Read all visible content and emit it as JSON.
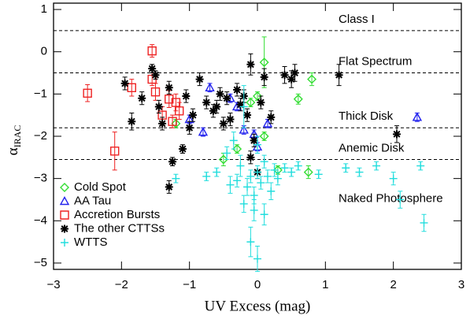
{
  "chart_data": {
    "type": "scatter",
    "x_label": "UV Excess (mag)",
    "y_label": "α",
    "y_label_sub": "IRAC",
    "xlim": [
      -3,
      3
    ],
    "ylim": [
      -5.15,
      1.15
    ],
    "xticks": [
      {
        "value": -3,
        "label": "−3"
      },
      {
        "value": -2,
        "label": "−2"
      },
      {
        "value": -1,
        "label": "−1"
      },
      0,
      1,
      2,
      3
    ],
    "yticks": [
      1,
      0,
      {
        "value": -1,
        "label": "−1"
      },
      {
        "value": -2,
        "label": "−2"
      },
      {
        "value": -3,
        "label": "−3"
      },
      {
        "value": -4,
        "label": "−4"
      },
      {
        "value": -5,
        "label": "−5"
      }
    ],
    "regions": [
      {
        "label": "Class I",
        "boundary": 0.5
      },
      {
        "label": "Flat Spectrum",
        "boundary": -0.5
      },
      {
        "label": "Thick Disk",
        "boundary": -1.8
      },
      {
        "label": "Anemic Disk",
        "boundary": -2.55
      },
      {
        "label": "Naked Photosphere",
        "boundary": null
      }
    ],
    "legend": "bottom-left",
    "series": [
      {
        "name": "Cold Spot",
        "color": "#33dd33",
        "marker": "diamond",
        "x": [
          0.1,
          0.8,
          0.6,
          -1.2,
          0.0,
          -0.1,
          -0.5,
          0.3,
          0.75,
          -0.3,
          0.1
        ],
        "values": [
          -0.25,
          -0.65,
          -1.12,
          -1.7,
          -1.05,
          -1.2,
          -2.55,
          -2.8,
          -2.85,
          -2.3,
          -2.0
        ],
        "errors": [
          0.6,
          0.15,
          0.12,
          0.1,
          0.1,
          0.1,
          0.15,
          0.1,
          0.15,
          0.1,
          0.1
        ]
      },
      {
        "name": "AA Tau",
        "color": "#2222ee",
        "marker": "triangle",
        "x": [
          -0.7,
          -0.8,
          -1.0,
          -0.3,
          -0.2,
          -0.05,
          0.15,
          0.0,
          -0.4,
          2.35
        ],
        "values": [
          -0.85,
          -1.9,
          -1.6,
          -1.3,
          -1.85,
          -1.95,
          -1.7,
          -2.25,
          -1.1,
          -1.55
        ],
        "errors": [
          0.1,
          0.1,
          0.1,
          0.1,
          0.1,
          0.1,
          0.1,
          0.1,
          0.1,
          0.1
        ]
      },
      {
        "name": "Accretion Bursts",
        "color": "#ee2222",
        "marker": "square",
        "x": [
          -2.5,
          -2.1,
          -1.55,
          -1.55,
          -1.85,
          -1.5,
          -1.3,
          -1.2,
          -1.15,
          -1.4,
          -1.25
        ],
        "values": [
          -0.98,
          -2.35,
          0.02,
          -0.65,
          -0.85,
          -0.95,
          -1.12,
          -1.2,
          -1.4,
          -1.5,
          -1.65
        ],
        "errors": [
          0.2,
          0.45,
          0.15,
          0.15,
          0.2,
          0.2,
          0.2,
          0.2,
          0.2,
          0.2,
          0.15
        ]
      },
      {
        "name": "The other CTTSs",
        "color": "#000000",
        "marker": "asterisk",
        "x": [
          -1.95,
          -1.85,
          -1.7,
          -1.55,
          -1.5,
          -1.45,
          -1.4,
          -1.3,
          -1.1,
          -1.05,
          -0.95,
          -0.85,
          -0.75,
          -0.65,
          -0.55,
          -0.45,
          -0.4,
          -0.3,
          -0.25,
          -0.2,
          -0.15,
          -0.1,
          -0.05,
          0.0,
          0.05,
          -0.1,
          0.4,
          0.55,
          0.5,
          1.2,
          2.05,
          -1.3,
          -1.0,
          -1.25,
          -0.6,
          -0.5,
          0.1,
          0.2
        ],
        "values": [
          -0.75,
          -1.65,
          -1.1,
          -0.4,
          -0.55,
          -1.3,
          -1.7,
          -0.85,
          -2.3,
          -1.05,
          -1.5,
          -0.65,
          -1.2,
          -1.4,
          -1.0,
          -1.1,
          -1.6,
          -0.9,
          -1.25,
          -1.05,
          -1.5,
          -0.3,
          -2.1,
          -2.85,
          -1.2,
          -2.5,
          -0.55,
          -0.5,
          -0.65,
          -0.55,
          -1.95,
          -3.2,
          -1.8,
          -2.6,
          -1.3,
          -1.7,
          -0.6,
          -1.55
        ],
        "errors": [
          0.15,
          0.2,
          0.15,
          0.1,
          0.1,
          0.15,
          0.15,
          0.15,
          0.1,
          0.15,
          0.15,
          0.15,
          0.15,
          0.15,
          0.15,
          0.15,
          0.15,
          0.15,
          0.15,
          0.15,
          0.15,
          0.25,
          0.15,
          0.15,
          0.15,
          0.15,
          0.2,
          0.2,
          0.2,
          0.25,
          0.2,
          0.15,
          0.15,
          0.1,
          0.15,
          0.15,
          0.2,
          0.15
        ]
      },
      {
        "name": "WTTS",
        "color": "#22dddd",
        "marker": "plus",
        "x": [
          -1.2,
          -0.75,
          -0.6,
          -0.45,
          -0.35,
          -0.3,
          -0.25,
          -0.2,
          -0.15,
          -0.1,
          -0.1,
          -0.05,
          0.0,
          0.0,
          0.05,
          0.1,
          0.15,
          0.2,
          0.25,
          0.3,
          0.4,
          0.5,
          0.6,
          0.9,
          1.3,
          1.5,
          1.75,
          2.0,
          2.1,
          2.4,
          2.45,
          -0.05,
          0.0,
          -0.2,
          0.1,
          -0.4
        ],
        "values": [
          -3.0,
          -2.95,
          -2.85,
          -2.4,
          -2.1,
          -3.05,
          -2.7,
          -1.3,
          -3.2,
          -2.95,
          -4.5,
          -3.4,
          -4.9,
          -2.85,
          -3.1,
          -2.6,
          -2.95,
          -3.3,
          -2.8,
          -3.0,
          -2.75,
          -2.85,
          -2.7,
          -2.9,
          -2.75,
          -2.85,
          -2.7,
          -3.0,
          -3.5,
          -2.7,
          -4.05,
          -3.75,
          -2.2,
          -3.6,
          -3.85,
          -3.15
        ],
        "errors": [
          0.1,
          0.1,
          0.1,
          0.15,
          0.2,
          0.15,
          0.25,
          0.5,
          0.2,
          0.15,
          0.35,
          0.2,
          0.3,
          0.15,
          0.15,
          0.15,
          0.15,
          0.2,
          0.15,
          0.15,
          0.1,
          0.1,
          0.1,
          0.1,
          0.1,
          0.1,
          0.1,
          0.15,
          0.2,
          0.1,
          0.2,
          0.25,
          0.2,
          0.2,
          0.25,
          0.2
        ]
      }
    ]
  }
}
